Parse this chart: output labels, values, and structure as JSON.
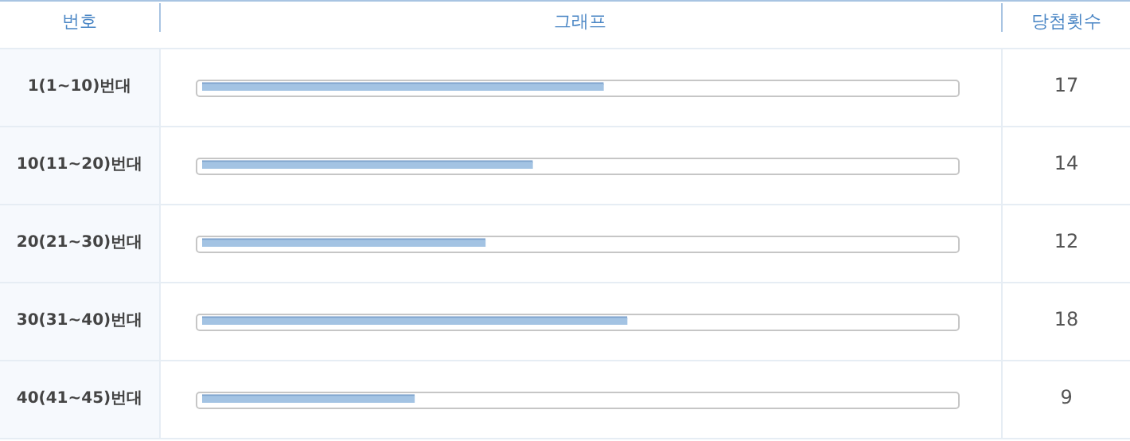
{
  "chart_data": {
    "type": "bar",
    "orientation": "horizontal",
    "title": "그래프",
    "ylabel": "번호",
    "annotations": [
      "당첨횟수"
    ],
    "categories": [
      "1(1~10)번대",
      "10(11~20)번대",
      "20(21~30)번대",
      "30(31~40)번대",
      "40(41~45)번대"
    ],
    "values": [
      17,
      14,
      12,
      18,
      9
    ],
    "color": "#a3c3e3",
    "xlim": [
      0,
      32
    ],
    "data_labels": true
  }
}
